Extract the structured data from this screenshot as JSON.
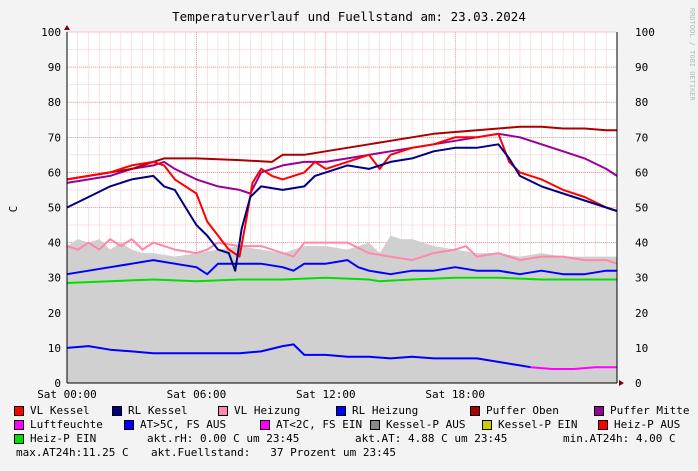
{
  "chart_data": {
    "type": "line",
    "title": "Temperaturverlauf und Fuellstand am: 23.03.2024",
    "watermark": "RRDTOOL / TOBI OETIKER",
    "ylabel": "C",
    "ylim": [
      0,
      100
    ],
    "yticks": [
      0,
      10,
      20,
      30,
      40,
      50,
      60,
      70,
      80,
      90,
      100
    ],
    "x_range_hours": [
      0,
      25.5
    ],
    "xticks": [
      {
        "hour": 0,
        "label": "Sat 00:00"
      },
      {
        "hour": 6,
        "label": "Sat 06:00"
      },
      {
        "hour": 12,
        "label": "Sat 12:00"
      },
      {
        "hour": 18,
        "label": "Sat 18:00"
      }
    ],
    "grid": true,
    "legend_position": "bottom",
    "series": [
      {
        "name": "AT>5C, FS AUS",
        "type": "area",
        "color": "#d0d0d0",
        "points": [
          [
            0,
            39
          ],
          [
            0.5,
            41
          ],
          [
            1,
            40
          ],
          [
            1.5,
            41
          ],
          [
            2,
            38
          ],
          [
            2.5,
            40
          ],
          [
            3,
            38
          ],
          [
            3.5,
            37
          ],
          [
            4,
            37
          ],
          [
            5,
            36
          ],
          [
            6,
            37
          ],
          [
            7,
            38
          ],
          [
            8,
            39
          ],
          [
            9,
            38
          ],
          [
            10,
            37
          ],
          [
            11,
            39
          ],
          [
            12,
            39
          ],
          [
            13,
            38
          ],
          [
            14,
            40
          ],
          [
            14.5,
            37
          ],
          [
            15,
            42
          ],
          [
            15.5,
            41
          ],
          [
            16,
            41
          ],
          [
            16.5,
            40
          ],
          [
            17,
            39
          ],
          [
            18,
            38
          ],
          [
            19,
            37
          ],
          [
            20,
            37
          ],
          [
            21,
            36
          ],
          [
            22,
            37
          ],
          [
            23,
            36
          ],
          [
            24,
            36
          ],
          [
            25,
            36
          ],
          [
            25.5,
            36
          ]
        ]
      },
      {
        "name": "VL Heizung",
        "color": "#ff88aa",
        "points": [
          [
            0,
            39
          ],
          [
            0.5,
            38
          ],
          [
            1,
            40
          ],
          [
            1.5,
            38
          ],
          [
            2,
            41
          ],
          [
            2.5,
            39
          ],
          [
            3,
            41
          ],
          [
            3.5,
            38
          ],
          [
            4,
            40
          ],
          [
            5,
            38
          ],
          [
            6,
            37
          ],
          [
            6.5,
            38
          ],
          [
            7,
            40
          ],
          [
            8,
            39
          ],
          [
            9,
            39
          ],
          [
            9.5,
            38
          ],
          [
            10,
            37
          ],
          [
            10.5,
            36
          ],
          [
            11,
            40
          ],
          [
            12,
            40
          ],
          [
            13,
            40
          ],
          [
            14,
            37
          ],
          [
            15,
            36
          ],
          [
            16,
            35
          ],
          [
            17,
            37
          ],
          [
            18,
            38
          ],
          [
            18.5,
            39
          ],
          [
            19,
            36
          ],
          [
            20,
            37
          ],
          [
            21,
            35
          ],
          [
            22,
            36
          ],
          [
            23,
            36
          ],
          [
            24,
            35
          ],
          [
            25,
            35
          ],
          [
            25.5,
            34
          ]
        ]
      },
      {
        "name": "RL Heizung",
        "color": "#0000ff",
        "points": [
          [
            0,
            31
          ],
          [
            1,
            32
          ],
          [
            2,
            33
          ],
          [
            3,
            34
          ],
          [
            4,
            35
          ],
          [
            5,
            34
          ],
          [
            6,
            33
          ],
          [
            6.5,
            31
          ],
          [
            7,
            34
          ],
          [
            8,
            34
          ],
          [
            9,
            34
          ],
          [
            10,
            33
          ],
          [
            10.5,
            32
          ],
          [
            11,
            34
          ],
          [
            12,
            34
          ],
          [
            13,
            35
          ],
          [
            13.5,
            33
          ],
          [
            14,
            32
          ],
          [
            15,
            31
          ],
          [
            16,
            32
          ],
          [
            17,
            32
          ],
          [
            18,
            33
          ],
          [
            19,
            32
          ],
          [
            20,
            32
          ],
          [
            21,
            31
          ],
          [
            22,
            32
          ],
          [
            23,
            31
          ],
          [
            24,
            31
          ],
          [
            25,
            32
          ],
          [
            25.5,
            32
          ]
        ]
      },
      {
        "name": "Heiz-P EIN",
        "color": "#00e000",
        "points": [
          [
            0,
            28.5
          ],
          [
            2,
            29
          ],
          [
            4,
            29.5
          ],
          [
            6,
            29
          ],
          [
            8,
            29.5
          ],
          [
            10,
            29.5
          ],
          [
            12,
            30
          ],
          [
            14,
            29.5
          ],
          [
            14.5,
            29
          ],
          [
            16,
            29.5
          ],
          [
            18,
            30
          ],
          [
            20,
            30
          ],
          [
            22,
            29.5
          ],
          [
            24,
            29.5
          ],
          [
            25.5,
            29.5
          ]
        ]
      },
      {
        "name": "Luftfeuchte",
        "color": "#0000ff",
        "points": [
          [
            0,
            10
          ],
          [
            1,
            10.5
          ],
          [
            2,
            9.5
          ],
          [
            3,
            9
          ],
          [
            4,
            8.5
          ],
          [
            5,
            8.5
          ],
          [
            6,
            8.5
          ],
          [
            7,
            8.5
          ],
          [
            8,
            8.5
          ],
          [
            9,
            9
          ],
          [
            10,
            10.5
          ],
          [
            10.5,
            11
          ],
          [
            11,
            8
          ],
          [
            12,
            8
          ],
          [
            13,
            7.5
          ],
          [
            14,
            7.5
          ],
          [
            15,
            7
          ],
          [
            16,
            7.5
          ],
          [
            17,
            7
          ],
          [
            18,
            7
          ],
          [
            19,
            7
          ],
          [
            20,
            6
          ],
          [
            21,
            5
          ],
          [
            21.5,
            4.5
          ]
        ]
      },
      {
        "name": "AT<2C, FS EIN",
        "color": "#ff00ff",
        "points": [
          [
            21.5,
            4.5
          ],
          [
            22.5,
            4
          ],
          [
            23.5,
            4
          ],
          [
            24.5,
            4.5
          ],
          [
            25.5,
            4.5
          ]
        ]
      },
      {
        "name": "Puffer Mitte",
        "color": "#990099",
        "points": [
          [
            0,
            57
          ],
          [
            1,
            58
          ],
          [
            2,
            59
          ],
          [
            3,
            61
          ],
          [
            4,
            62
          ],
          [
            4.5,
            63
          ],
          [
            5,
            61
          ],
          [
            6,
            58
          ],
          [
            7,
            56
          ],
          [
            8,
            55
          ],
          [
            8.5,
            54
          ],
          [
            9,
            60
          ],
          [
            10,
            62
          ],
          [
            11,
            63
          ],
          [
            12,
            63
          ],
          [
            13,
            64
          ],
          [
            14,
            65
          ],
          [
            15,
            66
          ],
          [
            16,
            67
          ],
          [
            17,
            68
          ],
          [
            18,
            69
          ],
          [
            19,
            70
          ],
          [
            20,
            71
          ],
          [
            21,
            70
          ],
          [
            22,
            68
          ],
          [
            23,
            66
          ],
          [
            24,
            64
          ],
          [
            25,
            61
          ],
          [
            25.5,
            59
          ]
        ]
      },
      {
        "name": "Puffer Oben",
        "color": "#aa0000",
        "points": [
          [
            0,
            58
          ],
          [
            1,
            59
          ],
          [
            2,
            60
          ],
          [
            3,
            61
          ],
          [
            4,
            63
          ],
          [
            4.5,
            64
          ],
          [
            6,
            64
          ],
          [
            8,
            63.5
          ],
          [
            9.5,
            63
          ],
          [
            10,
            65
          ],
          [
            11,
            65
          ],
          [
            12,
            66
          ],
          [
            13,
            67
          ],
          [
            14,
            68
          ],
          [
            15,
            69
          ],
          [
            16,
            70
          ],
          [
            17,
            71
          ],
          [
            18,
            71.5
          ],
          [
            19,
            72
          ],
          [
            20,
            72.5
          ],
          [
            21,
            73
          ],
          [
            22,
            73
          ],
          [
            23,
            72.5
          ],
          [
            24,
            72.5
          ],
          [
            25,
            72
          ],
          [
            25.5,
            72
          ]
        ]
      },
      {
        "name": "VL Kessel",
        "color": "#ff0000",
        "points": [
          [
            0,
            58
          ],
          [
            1,
            59
          ],
          [
            2,
            60
          ],
          [
            3,
            62
          ],
          [
            4,
            63
          ],
          [
            4.5,
            62
          ],
          [
            5,
            58
          ],
          [
            6,
            54
          ],
          [
            6.5,
            46
          ],
          [
            7,
            42
          ],
          [
            7.5,
            38
          ],
          [
            8,
            36
          ],
          [
            8.3,
            46
          ],
          [
            8.6,
            57
          ],
          [
            9,
            61
          ],
          [
            9.5,
            59
          ],
          [
            10,
            58
          ],
          [
            11,
            60
          ],
          [
            11.5,
            63
          ],
          [
            12,
            61
          ],
          [
            13,
            63
          ],
          [
            14,
            65
          ],
          [
            14.5,
            61
          ],
          [
            15,
            65
          ],
          [
            16,
            67
          ],
          [
            17,
            68
          ],
          [
            18,
            70
          ],
          [
            19,
            70
          ],
          [
            20,
            71
          ],
          [
            20.5,
            63
          ],
          [
            21,
            60
          ],
          [
            22,
            58
          ],
          [
            23,
            55
          ],
          [
            24,
            53
          ],
          [
            25,
            50
          ],
          [
            25.5,
            49
          ]
        ]
      },
      {
        "name": "RL Kessel",
        "color": "#000080",
        "points": [
          [
            0,
            50
          ],
          [
            1,
            53
          ],
          [
            2,
            56
          ],
          [
            3,
            58
          ],
          [
            4,
            59
          ],
          [
            4.5,
            56
          ],
          [
            5,
            55
          ],
          [
            5.5,
            50
          ],
          [
            6,
            45
          ],
          [
            6.5,
            42
          ],
          [
            7,
            38
          ],
          [
            7.5,
            37
          ],
          [
            7.8,
            32
          ],
          [
            8.1,
            44
          ],
          [
            8.5,
            53
          ],
          [
            9,
            56
          ],
          [
            10,
            55
          ],
          [
            11,
            56
          ],
          [
            11.5,
            59
          ],
          [
            12,
            60
          ],
          [
            13,
            62
          ],
          [
            14,
            61
          ],
          [
            15,
            63
          ],
          [
            16,
            64
          ],
          [
            17,
            66
          ],
          [
            18,
            67
          ],
          [
            19,
            67
          ],
          [
            20,
            68
          ],
          [
            20.5,
            64
          ],
          [
            21,
            59
          ],
          [
            22,
            56
          ],
          [
            23,
            54
          ],
          [
            24,
            52
          ],
          [
            25,
            50
          ],
          [
            25.5,
            49
          ]
        ]
      }
    ]
  },
  "legend": [
    {
      "label": "VL Kessel",
      "color": "#ff0000"
    },
    {
      "label": "RL Kessel",
      "color": "#000080"
    },
    {
      "label": "VL Heizung",
      "color": "#ff88aa"
    },
    {
      "label": "RL Heizung",
      "color": "#0000ff"
    },
    {
      "label": "Puffer Oben",
      "color": "#aa0000"
    },
    {
      "label": "Puffer Mitte",
      "color": "#990099"
    },
    {
      "label": "Luftfeuchte",
      "color": "#ff00ff"
    },
    {
      "label": "AT>5C, FS AUS",
      "color": "#0000ff"
    },
    {
      "label": "AT<2C, FS EIN",
      "color": "#ff00ff"
    },
    {
      "label": "Kessel-P AUS",
      "color": "#888888"
    },
    {
      "label": "Kessel-P EIN",
      "color": "#cccc00"
    },
    {
      "label": "Heiz-P AUS",
      "color": "#ff0000"
    },
    {
      "label": "Heiz-P EIN",
      "color": "#00e000"
    }
  ],
  "status": {
    "akt_rh": "akt.rH: 0.00 C um 23:45",
    "akt_at": "akt.AT: 4.88 C um 23:45",
    "min_at24h": "min.AT24h: 4.00 C",
    "max_at24h": "max.AT24h:11.25 C",
    "fuellstand": "akt.Fuellstand:   37 Prozent um 23:45"
  }
}
